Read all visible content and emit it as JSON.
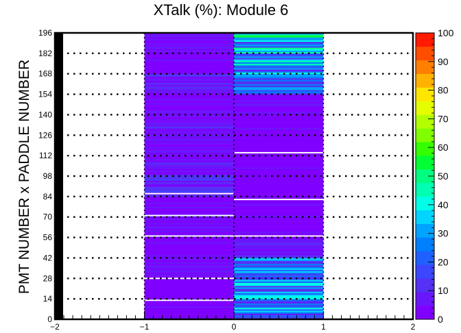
{
  "chart_data": {
    "type": "heatmap",
    "title": "XTalk (%): Module 6",
    "xlabel": "",
    "ylabel": "PMT NUMBER x PADDLE NUMBER",
    "xlim": [
      -2,
      2
    ],
    "ylim": [
      0,
      196
    ],
    "x_ticks": [
      "−2",
      "−1",
      "0",
      "1",
      "2"
    ],
    "y_ticks": [
      "0",
      "14",
      "28",
      "42",
      "56",
      "70",
      "84",
      "98",
      "112",
      "126",
      "140",
      "154",
      "168",
      "182",
      "196"
    ],
    "z_range": [
      0,
      100
    ],
    "z_ticks": [
      "0",
      "10",
      "20",
      "30",
      "40",
      "50",
      "60",
      "70",
      "80",
      "90",
      "100"
    ],
    "palette": [
      "#7f00ff",
      "#6a16fb",
      "#5530f5",
      "#3c46ff",
      "#1f60ff",
      "#007fff",
      "#00a3ff",
      "#00d4ff",
      "#00ffe8",
      "#00ffb2",
      "#00ff80",
      "#00ff33",
      "#33ff00",
      "#80ff00",
      "#b2ff00",
      "#e6ff00",
      "#ffe600",
      "#ffb300",
      "#ff8000",
      "#ff4d00",
      "#ff1a00"
    ],
    "grid": "dotted horizontal lines every 14 units; dotted vertical lines at x = -1, 0, 1",
    "columns": [
      {
        "x_range": [
          -1,
          0
        ],
        "typical_value": 3,
        "bands": [
          {
            "y": [
              0,
              14
            ],
            "value": 3
          },
          {
            "y": [
              14,
              28
            ],
            "value": 2
          },
          {
            "y": [
              28,
              42
            ],
            "value": 5
          },
          {
            "y": [
              42,
              56
            ],
            "value": 3
          },
          {
            "y": [
              56,
              70
            ],
            "value": 5
          },
          {
            "y": [
              70,
              84
            ],
            "value": 4
          },
          {
            "y": [
              84,
              98
            ],
            "value": 10
          },
          {
            "y": [
              98,
              112
            ],
            "value": 6
          },
          {
            "y": [
              112,
              126
            ],
            "value": 5
          },
          {
            "y": [
              126,
              140
            ],
            "value": 6
          },
          {
            "y": [
              140,
              154
            ],
            "value": 4
          },
          {
            "y": [
              154,
              168
            ],
            "value": 8
          },
          {
            "y": [
              168,
              182
            ],
            "value": 3
          },
          {
            "y": [
              182,
              196
            ],
            "value": 4
          }
        ]
      },
      {
        "x_range": [
          0,
          1
        ],
        "typical_value": 3,
        "bands": [
          {
            "y": [
              0,
              14
            ],
            "value": 22
          },
          {
            "y": [
              14,
              28
            ],
            "value": 25
          },
          {
            "y": [
              28,
              42
            ],
            "value": 22
          },
          {
            "y": [
              42,
              56
            ],
            "value": 7
          },
          {
            "y": [
              56,
              70
            ],
            "value": 3
          },
          {
            "y": [
              70,
              84
            ],
            "value": 3
          },
          {
            "y": [
              84,
              98
            ],
            "value": 2
          },
          {
            "y": [
              98,
              112
            ],
            "value": 3
          },
          {
            "y": [
              112,
              126
            ],
            "value": 2
          },
          {
            "y": [
              126,
              140
            ],
            "value": 3
          },
          {
            "y": [
              140,
              154
            ],
            "value": 4
          },
          {
            "y": [
              154,
              168
            ],
            "value": 20
          },
          {
            "y": [
              168,
              182
            ],
            "value": 28
          },
          {
            "y": [
              182,
              196
            ],
            "value": 30
          }
        ]
      }
    ],
    "gaps_y": {
      "left": [
        13,
        28,
        57,
        71,
        86
      ],
      "right": [
        57,
        82,
        114
      ]
    }
  }
}
